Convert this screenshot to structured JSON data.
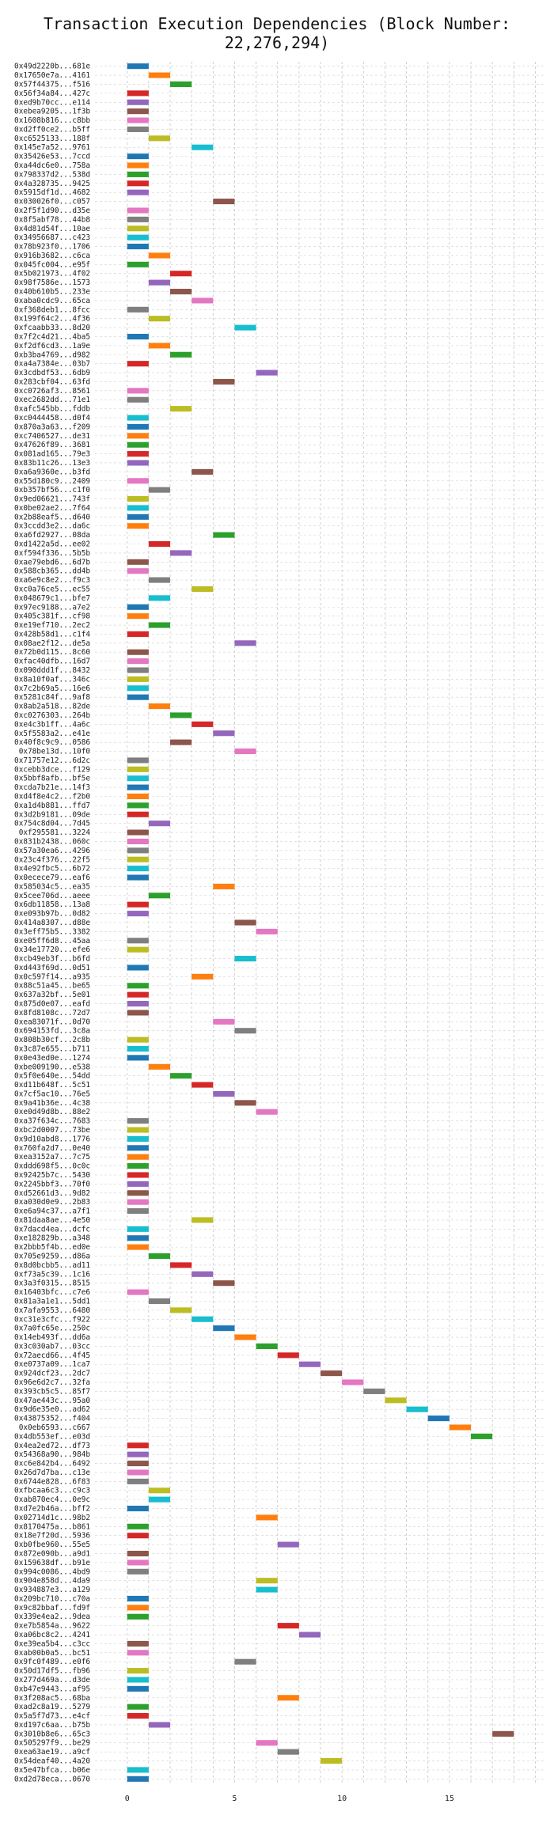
{
  "chart_data": {
    "type": "bar",
    "orientation": "horizontal",
    "title": "Transaction Execution Dependencies (Block Number: 22,276,294)",
    "xlabel": "",
    "ylabel": "",
    "xlim": [
      -1.5,
      19.5
    ],
    "xticks": [
      0,
      5,
      10,
      15
    ],
    "grid": true,
    "bar_length": 1,
    "categories": [
      "0x49d2220b...681e",
      "0x17650e7a...4161",
      "0x57f44375...f516",
      "0x56f34a84...427c",
      "0xed9b70cc...e114",
      "0xebea9205...1f3b",
      "0x1608b816...c8bb",
      "0xd2ff0ce2...b5ff",
      "0xc6525133...188f",
      "0x145e7a52...9761",
      "0x35426e53...7ccd",
      "0xa44dc6e0...758a",
      "0x798337d2...538d",
      "0x4a328735...9425",
      "0x5915df1d...4682",
      "0x030026f0...c057",
      "0x2f5f1d90...d35e",
      "0x8f5abf78...44b8",
      "0x4d81d54f...10ae",
      "0x34956687...c423",
      "0x78b923f0...1706",
      "0x916b3682...c6ca",
      "0x045fc004...e95f",
      "0x5b021973...4f02",
      "0x98f7586e...1573",
      "0x40b610b5...233e",
      "0xaba0cdc9...65ca",
      "0xf368deb1...8fcc",
      "0x199f64c2...4f36",
      "0xfcaabb33...8d20",
      "0x7f2c4d21...4ba5",
      "0xf2df6cd3...1a9e",
      "0xb3ba4769...d982",
      "0xa4a7384e...03b7",
      "0x3cdbdf53...6db9",
      "0x283cbf04...63fd",
      "0xc0726af3...8561",
      "0xec2682dd...71e1",
      "0xafc545bb...fddb",
      "0xc0444458...d0f4",
      "0x870a3a63...f209",
      "0xc7406527...de31",
      "0x47626f89...3681",
      "0x081ad165...79e3",
      "0x83b11c26...13e3",
      "0xa6a9360e...b3fd",
      "0x55d180c9...2409",
      "0xb357bf56...c1f0",
      "0x9ed06621...743f",
      "0x0be02ae2...7f64",
      "0x2b88eaf5...d640",
      "0x3ccdd3e2...da6c",
      "0xa6fd2927...08da",
      "0xd1422a5d...ee02",
      "0xf594f336...5b5b",
      "0xae79ebd6...6d7b",
      "0x588cb365...dd4b",
      "0xa6e9c8e2...f9c3",
      "0xc0a76ce5...ec55",
      "0x048679c1...bfe7",
      "0x97ec9188...a7e2",
      "0x405c381f...cf98",
      "0xe19ef710...2ec2",
      "0x428b58d1...c1f4",
      "0x08ae2f12...de5a",
      "0x72b0d115...8c60",
      "0xfac40dfb...16d7",
      "0x090ddd1f...8432",
      "0x8a10f0af...346c",
      "0x7c2b69a5...16e6",
      "0x5281c84f...9af8",
      "0x8ab2a518...82de",
      "0xc0276303...264b",
      "0xe4c3b1ff...4a6c",
      "0x5f5583a2...e41e",
      "0x40f8c9c9...0586",
      "0x78be13d...10f0",
      "0x71757e12...6d2c",
      "0xcebb3dce...f129",
      "0x5bbf8afb...bf5e",
      "0xcda7b21e...14f3",
      "0xd4f8e4c2...f2b0",
      "0xa1d4b881...ffd7",
      "0x3d2b9181...09de",
      "0x754c8d04...7d45",
      "0xf295581...3224",
      "0x831b2438...060c",
      "0x57a30ea6...4296",
      "0x23c4f376...22f5",
      "0x4e92fbc5...6b72",
      "0x0ecece79...eaf6",
      "0x585034c5...ea35",
      "0x5cee706d...aeee",
      "0x6db11858...13a8",
      "0xe093b97b...0d82",
      "0x414a8307...d88e",
      "0x3eff75b5...3382",
      "0xe05ff6d8...45aa",
      "0x34e17720...efe6",
      "0xcb49eb3f...b6fd",
      "0xd443f69d...0d51",
      "0x0c597f14...a935",
      "0x88c51a45...be65",
      "0x637a32bf...5e01",
      "0x875d0e07...eafd",
      "0x8fd8108c...72d7",
      "0xea83071f...0d70",
      "0x694153fd...3c8a",
      "0x808b30cf...2c8b",
      "0x3c87e655...b711",
      "0x0e43ed0e...1274",
      "0xbe009190...e538",
      "0x5f0e640e...54dd",
      "0xd11b648f...5c51",
      "0x7cf5ac10...76e5",
      "0x9a41b36e...4c38",
      "0xe0d49d8b...88e2",
      "0xa37f634c...7683",
      "0xbc2d0007...73be",
      "0x9d10abd8...1776",
      "0x760fa2d7...0e40",
      "0xea3152a7...7c75",
      "0xddd698f5...0c0c",
      "0x92425b7c...5430",
      "0x2245bbf3...70f0",
      "0xd52661d3...9d82",
      "0xa030d0e9...2b83",
      "0xe6a94c37...a7f1",
      "0x81daa8ae...4e50",
      "0x7dacd4ea...dcfc",
      "0xe182829b...a348",
      "0x2bbb5f4b...ed0e",
      "0x705e9259...d86a",
      "0x8d0bcbb5...ad11",
      "0xf73a5c39...1c16",
      "0x3a3f0315...8515",
      "0x16403bfc...c7e6",
      "0x81a3a1e1...5dd1",
      "0x7afa9553...6480",
      "0xc31e3cfc...f922",
      "0x7a0fc65e...250c",
      "0x14eb493f...dd6a",
      "0x3c030ab7...03cc",
      "0x72aecd66...4f45",
      "0xe0737a09...1ca7",
      "0x924dcf23...2dc7",
      "0x96e6d2c7...32fa",
      "0x393cb5c5...85f7",
      "0x47ae443c...95a0",
      "0x9d6e35e0...ad62",
      "0x43875352...f404",
      "0x0eb6593...c667",
      "0x4db553ef...e03d",
      "0x4ea2ed72...df73",
      "0x54368a90...984b",
      "0xc6e842b4...6492",
      "0x26d7d7ba...c13e",
      "0x6744e828...6f83",
      "0xfbcaa6c3...c9c3",
      "0xab870ec4...0e9c",
      "0xd7e2b46a...bff2",
      "0x02714d1c...98b2",
      "0x8170475a...b861",
      "0x18e7f20d...5936",
      "0xb0fbe960...55e5",
      "0x872e090b...a9d1",
      "0x159638df...b91e",
      "0x994c0086...4bd9",
      "0x904e858d...4da9",
      "0x934887e3...a129",
      "0x209bc710...c70a",
      "0x9c82bbaf...fd9f",
      "0x339e4ea2...9dea",
      "0xe7b5854a...9622",
      "0xa06bc8c2...4241",
      "0xe39ea5b4...c3cc",
      "0xab00b0a5...bc51",
      "0x9fc0f489...e0f6",
      "0x50d17df5...fb96",
      "0x277d469a...d3de",
      "0xb47e9443...af95",
      "0x3f208ac5...68ba",
      "0xad2c8a19...5279",
      "0x5a5f7d73...e4cf",
      "0xd197c6aa...b75b",
      "0x3010b8e6...65c3",
      "0x505297f9...be29",
      "0xea63ae19...a9cf",
      "0x54deaf40...4a20",
      "0x5e47bfca...b06e",
      "0xd2d78eca...0670"
    ],
    "values": [
      0,
      1,
      2,
      0,
      0,
      0,
      0,
      0,
      1,
      3,
      0,
      0,
      0,
      0,
      0,
      4,
      0,
      0,
      0,
      0,
      0,
      1,
      0,
      2,
      1,
      2,
      3,
      0,
      1,
      5,
      0,
      1,
      2,
      0,
      6,
      4,
      0,
      0,
      2,
      0,
      0,
      0,
      0,
      0,
      0,
      3,
      0,
      1,
      0,
      0,
      0,
      0,
      4,
      1,
      2,
      0,
      0,
      1,
      3,
      1,
      0,
      0,
      1,
      0,
      5,
      0,
      0,
      0,
      0,
      0,
      0,
      1,
      2,
      3,
      4,
      2,
      5,
      0,
      0,
      0,
      0,
      0,
      0,
      0,
      1,
      0,
      0,
      0,
      0,
      0,
      0,
      4,
      1,
      0,
      0,
      5,
      6,
      0,
      0,
      5,
      0,
      3,
      0,
      0,
      0,
      0,
      4,
      5,
      0,
      0,
      0,
      1,
      2,
      3,
      4,
      5,
      6,
      0,
      0,
      0,
      0,
      0,
      0,
      0,
      0,
      0,
      0,
      0,
      3,
      0,
      0,
      0,
      1,
      2,
      3,
      4,
      0,
      1,
      2,
      3,
      4,
      5,
      6,
      7,
      8,
      9,
      10,
      11,
      12,
      13,
      14,
      15,
      16,
      0,
      0,
      0,
      0,
      0,
      1,
      1,
      0,
      6,
      0,
      0,
      7,
      0,
      0,
      0,
      6,
      6,
      0,
      0,
      0,
      7,
      8,
      0,
      0,
      5,
      0,
      0,
      0,
      7,
      0,
      0,
      1,
      17,
      6,
      7,
      9,
      0,
      0
    ],
    "colors": [
      "#1f77b4",
      "#ff7f0e",
      "#2ca02c",
      "#d62728",
      "#9467bd",
      "#8c564b",
      "#e377c2",
      "#7f7f7f",
      "#bcbd22",
      "#17becf"
    ]
  }
}
